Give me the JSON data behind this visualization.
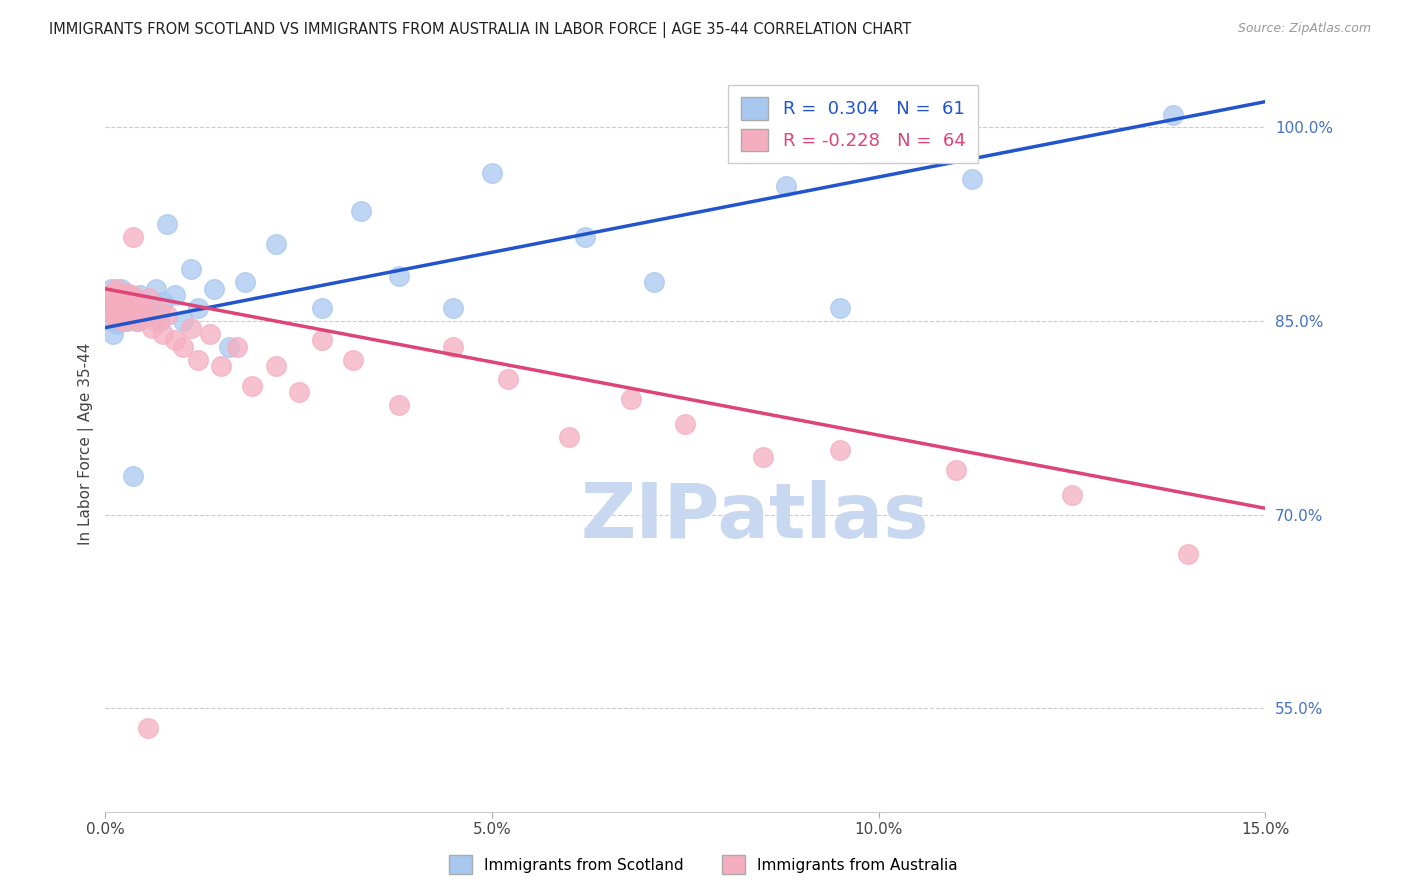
{
  "title": "IMMIGRANTS FROM SCOTLAND VS IMMIGRANTS FROM AUSTRALIA IN LABOR FORCE | AGE 35-44 CORRELATION CHART",
  "source": "Source: ZipAtlas.com",
  "ylabel": "In Labor Force | Age 35-44",
  "xlim": [
    0.0,
    15.0
  ],
  "ylim": [
    47.0,
    104.0
  ],
  "xticks": [
    0.0,
    5.0,
    10.0,
    15.0
  ],
  "xticklabels": [
    "0.0%",
    "5.0%",
    "10.0%",
    "15.0%"
  ],
  "ytick_positions": [
    55.0,
    70.0,
    85.0,
    100.0
  ],
  "ytick_labels": [
    "55.0%",
    "70.0%",
    "85.0%",
    "100.0%"
  ],
  "scotland_R": 0.304,
  "scotland_N": 61,
  "australia_R": -0.228,
  "australia_N": 64,
  "scotland_color": "#a8c8f0",
  "australia_color": "#f5aec0",
  "scotland_line_color": "#2255cc",
  "australia_line_color": "#dd4477",
  "watermark": "ZIPatlas",
  "watermark_color": "#c8d8f0",
  "scotland_line_x": [
    0.0,
    15.0
  ],
  "scotland_line_y": [
    84.5,
    102.0
  ],
  "australia_line_x": [
    0.0,
    15.0
  ],
  "australia_line_y": [
    87.5,
    70.5
  ],
  "scotland_x": [
    0.05,
    0.07,
    0.08,
    0.09,
    0.1,
    0.1,
    0.11,
    0.12,
    0.13,
    0.14,
    0.15,
    0.15,
    0.16,
    0.17,
    0.18,
    0.19,
    0.2,
    0.2,
    0.21,
    0.22,
    0.23,
    0.24,
    0.25,
    0.26,
    0.27,
    0.28,
    0.3,
    0.32,
    0.35,
    0.38,
    0.4,
    0.42,
    0.45,
    0.48,
    0.5,
    0.55,
    0.6,
    0.65,
    0.7,
    0.75,
    0.8,
    0.9,
    1.0,
    1.1,
    1.2,
    1.4,
    1.6,
    1.8,
    2.2,
    2.8,
    3.3,
    3.8,
    4.5,
    5.0,
    6.2,
    7.1,
    8.8,
    9.5,
    11.2,
    13.8,
    0.35
  ],
  "scotland_y": [
    86.0,
    87.5,
    86.5,
    85.0,
    84.0,
    86.5,
    85.5,
    86.0,
    87.0,
    85.5,
    86.2,
    84.8,
    85.5,
    86.0,
    85.2,
    86.5,
    85.0,
    87.5,
    86.0,
    85.5,
    86.2,
    87.0,
    85.8,
    86.5,
    87.2,
    85.0,
    86.0,
    85.5,
    86.8,
    85.2,
    86.5,
    85.0,
    87.0,
    86.2,
    85.5,
    86.0,
    85.8,
    87.5,
    85.0,
    86.5,
    92.5,
    87.0,
    85.0,
    89.0,
    86.0,
    87.5,
    83.0,
    88.0,
    91.0,
    86.0,
    93.5,
    88.5,
    86.0,
    96.5,
    91.5,
    88.0,
    95.5,
    86.0,
    96.0,
    101.0,
    73.0
  ],
  "australia_x": [
    0.04,
    0.06,
    0.08,
    0.09,
    0.1,
    0.11,
    0.12,
    0.13,
    0.14,
    0.15,
    0.16,
    0.17,
    0.18,
    0.19,
    0.2,
    0.21,
    0.22,
    0.23,
    0.24,
    0.25,
    0.26,
    0.27,
    0.28,
    0.3,
    0.32,
    0.34,
    0.36,
    0.38,
    0.4,
    0.42,
    0.45,
    0.48,
    0.52,
    0.56,
    0.6,
    0.65,
    0.7,
    0.75,
    0.8,
    0.9,
    1.0,
    1.1,
    1.2,
    1.35,
    1.5,
    1.7,
    1.9,
    2.2,
    2.5,
    2.8,
    3.2,
    3.8,
    4.5,
    5.2,
    6.0,
    6.8,
    7.5,
    8.5,
    9.5,
    11.0,
    12.5,
    14.0,
    0.35,
    0.55
  ],
  "australia_y": [
    86.5,
    87.0,
    86.2,
    85.5,
    86.8,
    87.2,
    85.5,
    86.0,
    87.5,
    86.0,
    85.8,
    87.0,
    86.5,
    85.2,
    87.0,
    86.2,
    85.5,
    86.8,
    85.0,
    86.5,
    87.2,
    85.8,
    86.0,
    85.5,
    86.2,
    87.0,
    85.5,
    86.8,
    85.0,
    86.5,
    85.2,
    86.0,
    85.5,
    86.8,
    84.5,
    85.0,
    85.8,
    84.0,
    85.5,
    83.5,
    83.0,
    84.5,
    82.0,
    84.0,
    81.5,
    83.0,
    80.0,
    81.5,
    79.5,
    83.5,
    82.0,
    78.5,
    83.0,
    80.5,
    76.0,
    79.0,
    77.0,
    74.5,
    75.0,
    73.5,
    71.5,
    67.0,
    91.5,
    53.5
  ]
}
